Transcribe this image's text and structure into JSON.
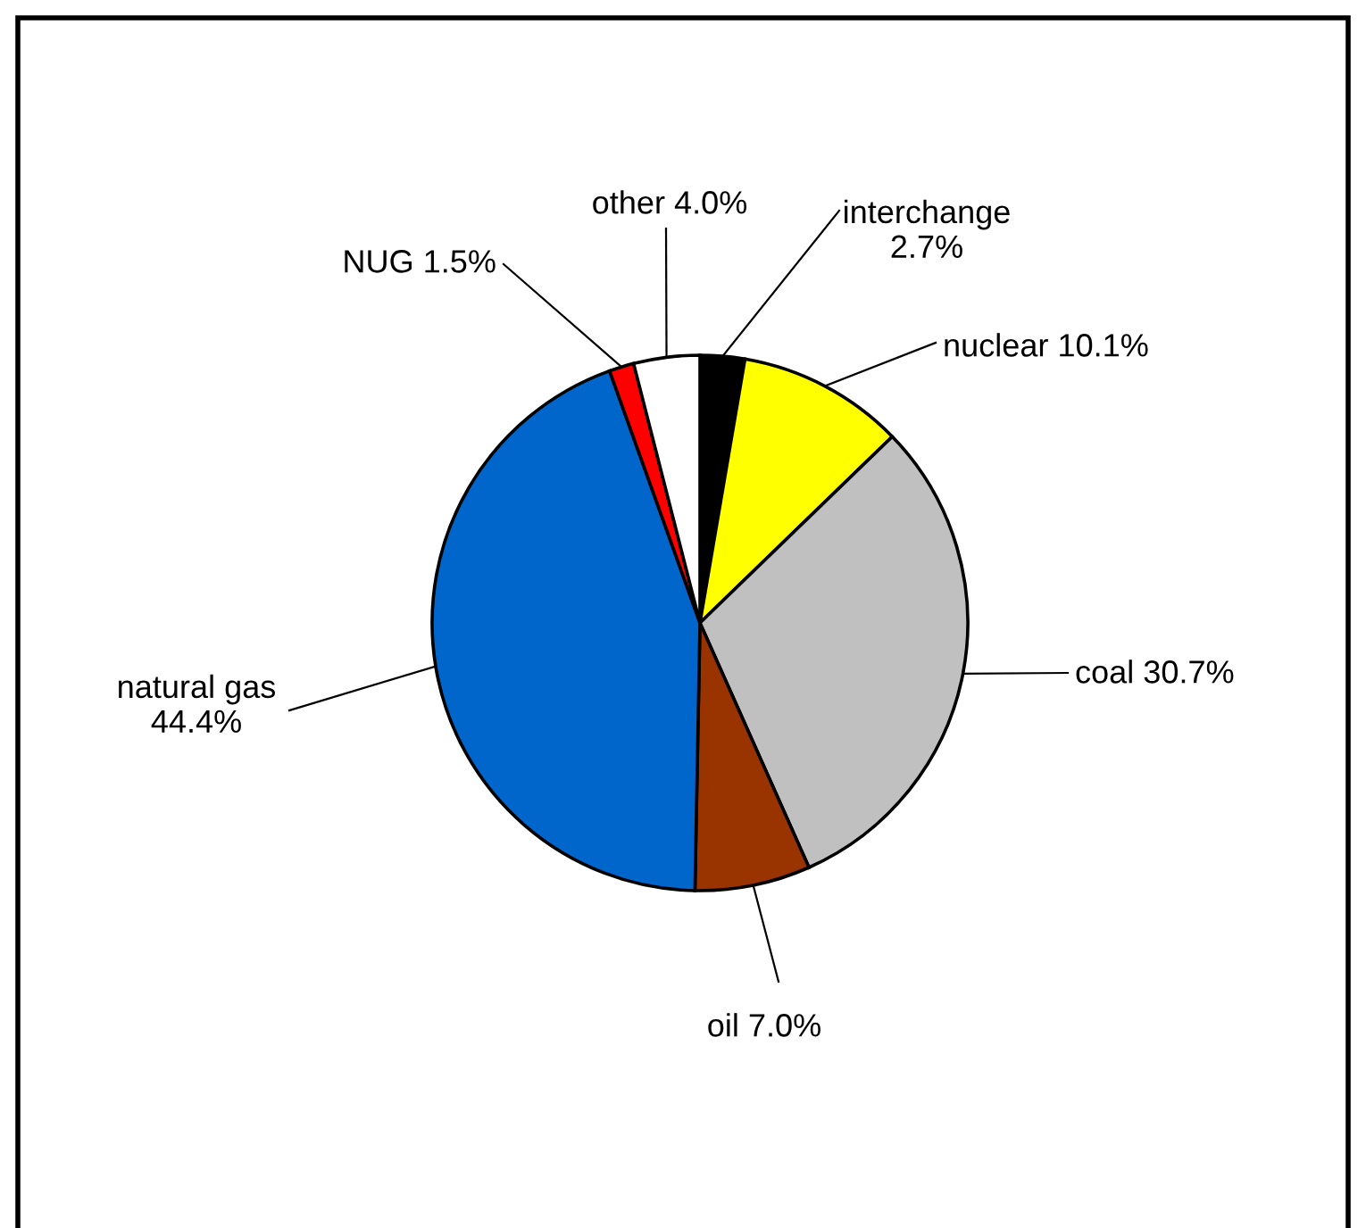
{
  "chart_data": {
    "type": "pie",
    "categories": [
      "interchange",
      "nuclear",
      "coal",
      "oil",
      "natural gas",
      "NUG",
      "other"
    ],
    "values": [
      2.7,
      10.1,
      30.7,
      7.0,
      44.4,
      1.5,
      4.0
    ],
    "value_labels": [
      "2.7%",
      "10.1%",
      "30.7%",
      "7.0%",
      "44.4%",
      "1.5%",
      "4.0%"
    ],
    "colors": [
      "#000000",
      "#ffff00",
      "#c0c0c0",
      "#993300",
      "#0066cc",
      "#ff0000",
      "#ffffff"
    ],
    "legend": false
  }
}
